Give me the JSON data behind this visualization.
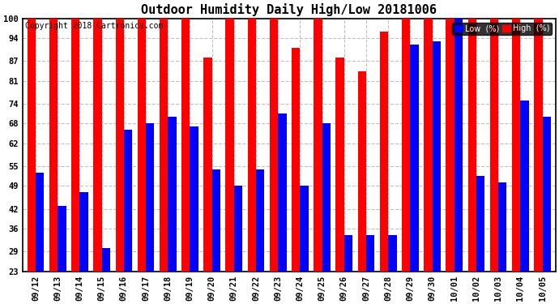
{
  "title": "Outdoor Humidity Daily High/Low 20181006",
  "copyright": "Copyright 2018 Cartronics.com",
  "legend_low": "Low  (%)",
  "legend_high": "High  (%)",
  "categories": [
    "09/12",
    "09/13",
    "09/14",
    "09/15",
    "09/16",
    "09/17",
    "09/18",
    "09/19",
    "09/20",
    "09/21",
    "09/22",
    "09/23",
    "09/24",
    "09/25",
    "09/26",
    "09/27",
    "09/28",
    "09/29",
    "09/30",
    "10/01",
    "10/02",
    "10/03",
    "10/04",
    "10/05"
  ],
  "high": [
    100,
    100,
    100,
    100,
    100,
    100,
    100,
    100,
    88,
    100,
    100,
    100,
    91,
    100,
    88,
    84,
    96,
    100,
    100,
    100,
    100,
    100,
    100,
    100
  ],
  "low": [
    53,
    43,
    47,
    30,
    66,
    68,
    70,
    67,
    54,
    49,
    54,
    71,
    49,
    68,
    34,
    34,
    34,
    92,
    93,
    100,
    52,
    50,
    75,
    70
  ],
  "bar_width": 0.38,
  "ymin": 23,
  "ymax": 100,
  "yticks": [
    23,
    29,
    36,
    42,
    49,
    55,
    62,
    68,
    74,
    81,
    87,
    94,
    100
  ],
  "color_high": "#ff0000",
  "color_low": "#0000ff",
  "bg_color": "#ffffff",
  "grid_color": "#c0c0c0",
  "title_fontsize": 11,
  "tick_fontsize": 7.5,
  "copyright_fontsize": 7
}
